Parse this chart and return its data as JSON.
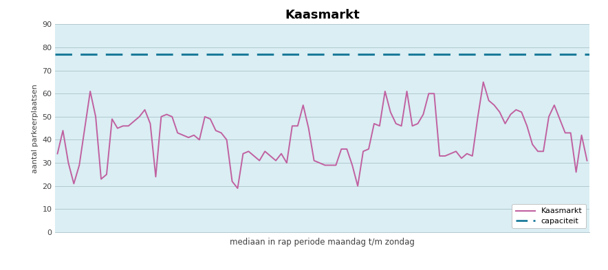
{
  "title": "Kaasmarkt",
  "ylabel": "aantal parkeerplaatsen",
  "xlabel": "mediaan in rap periode maandag t/m zondag",
  "ylim": [
    0,
    90
  ],
  "yticks": [
    0,
    10,
    20,
    30,
    40,
    50,
    60,
    70,
    80,
    90
  ],
  "capaciteit": 77,
  "capaciteit_color": "#1a7a9a",
  "line_color": "#c060a0",
  "background_color": "#daeef3",
  "grid_color": "#b0c8d0",
  "legend_labels": [
    "Kaasmarkt",
    "capaciteit"
  ],
  "values": [
    34,
    44,
    30,
    21,
    29,
    45,
    61,
    50,
    23,
    25,
    49,
    45,
    46,
    46,
    48,
    50,
    53,
    47,
    24,
    50,
    51,
    50,
    43,
    42,
    41,
    42,
    40,
    50,
    49,
    44,
    43,
    40,
    22,
    19,
    34,
    35,
    33,
    31,
    35,
    33,
    31,
    34,
    30,
    46,
    46,
    55,
    45,
    31,
    30,
    29,
    29,
    29,
    36,
    36,
    29,
    20,
    35,
    36,
    47,
    46,
    61,
    52,
    47,
    46,
    61,
    46,
    47,
    51,
    60,
    60,
    33,
    33,
    34,
    35,
    32,
    34,
    33,
    50,
    65,
    57,
    55,
    52,
    47,
    51,
    53,
    52,
    46,
    38,
    35,
    35,
    50,
    55,
    49,
    43,
    43,
    26,
    42,
    31
  ]
}
